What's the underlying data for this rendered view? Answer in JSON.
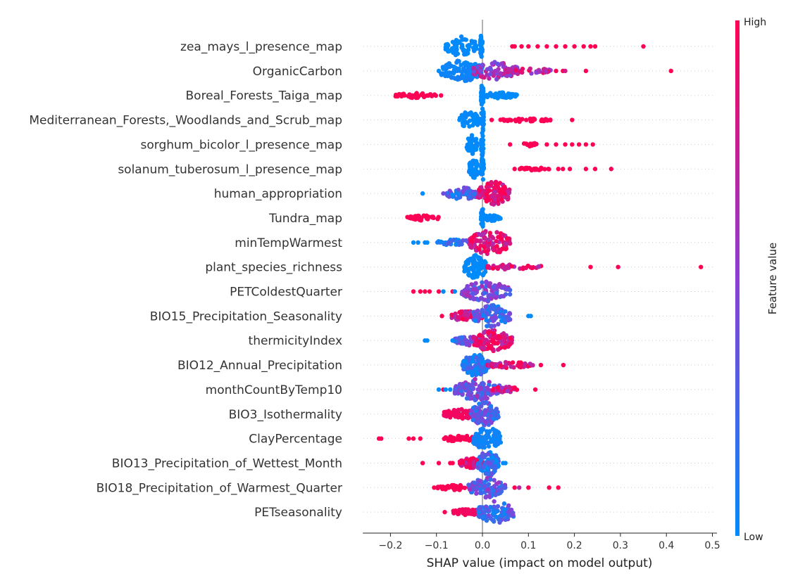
{
  "chart_data": {
    "type": "scatter",
    "subtype": "shap-beeswarm",
    "title": "",
    "xlabel": "SHAP value (impact on model output)",
    "ylabel": "",
    "xlim": [
      -0.26,
      0.51
    ],
    "xticks": [
      -0.2,
      -0.1,
      0.0,
      0.1,
      0.2,
      0.3,
      0.4,
      0.5
    ],
    "xtick_labels": [
      "−0.2",
      "−0.1",
      "0.0",
      "0.1",
      "0.2",
      "0.3",
      "0.4",
      "0.5"
    ],
    "grid": "dotted horizontal per feature",
    "colorbar": {
      "label": "Feature value",
      "high_label": "High",
      "low_label": "Low",
      "low_color": "#008bfb",
      "high_color": "#ff0052"
    },
    "features": [
      {
        "name": "zea_mays_l_presence_map",
        "clusters": [
          {
            "from": -0.08,
            "to": -0.01,
            "color": 0,
            "spread": 1.0,
            "n": 60
          },
          {
            "from": -0.005,
            "to": 0.0,
            "color": 0,
            "spread": 1.2,
            "n": 30
          }
        ],
        "points": [
          {
            "x": 0.065,
            "c": 1
          },
          {
            "x": 0.07,
            "c": 1
          },
          {
            "x": 0.085,
            "c": 1
          },
          {
            "x": 0.1,
            "c": 1
          },
          {
            "x": 0.12,
            "c": 1
          },
          {
            "x": 0.14,
            "c": 1
          },
          {
            "x": 0.16,
            "c": 1
          },
          {
            "x": 0.18,
            "c": 1
          },
          {
            "x": 0.2,
            "c": 1
          },
          {
            "x": 0.22,
            "c": 1
          },
          {
            "x": 0.235,
            "c": 1
          },
          {
            "x": 0.245,
            "c": 1
          },
          {
            "x": 0.35,
            "c": 1
          }
        ]
      },
      {
        "name": "OrganicCarbon",
        "clusters": [
          {
            "from": -0.09,
            "to": 0.0,
            "color": 0.05,
            "spread": 1.1,
            "n": 120
          },
          {
            "from": -0.02,
            "to": 0.08,
            "color": 0.6,
            "spread": 0.9,
            "n": 90
          },
          {
            "from": 0.05,
            "to": 0.15,
            "color": 0.75,
            "spread": 0.3,
            "n": 40
          }
        ],
        "points": [
          {
            "x": -0.095,
            "c": 0
          },
          {
            "x": 0.16,
            "c": 1
          },
          {
            "x": 0.175,
            "c": 1
          },
          {
            "x": 0.18,
            "c": 0.8
          },
          {
            "x": 0.225,
            "c": 1
          },
          {
            "x": 0.41,
            "c": 1
          }
        ]
      },
      {
        "name": "Boreal_Forests_Taiga_map",
        "clusters": [
          {
            "from": -0.19,
            "to": -0.1,
            "color": 1,
            "spread": 0.25,
            "n": 40
          },
          {
            "from": 0.0,
            "to": 0.075,
            "color": 0,
            "spread": 0.3,
            "n": 60
          },
          {
            "from": -0.003,
            "to": 0.002,
            "color": 0,
            "spread": 1.3,
            "n": 30
          }
        ],
        "points": [
          {
            "x": -0.09,
            "c": 1
          }
        ]
      },
      {
        "name": "Mediterranean_Forests,_Woodlands_and_Scrub_map",
        "clusters": [
          {
            "from": -0.05,
            "to": -0.005,
            "color": 0,
            "spread": 0.9,
            "n": 50
          },
          {
            "from": 0.035,
            "to": 0.15,
            "color": 1,
            "spread": 0.2,
            "n": 35
          },
          {
            "from": -0.003,
            "to": 0.003,
            "color": 0,
            "spread": 1.3,
            "n": 25
          }
        ],
        "points": [
          {
            "x": 0.02,
            "c": 1
          },
          {
            "x": 0.195,
            "c": 1
          }
        ]
      },
      {
        "name": "sorghum_bicolor_l_presence_map",
        "clusters": [
          {
            "from": -0.035,
            "to": -0.01,
            "color": 0,
            "spread": 1.0,
            "n": 40
          },
          {
            "from": -0.003,
            "to": 0.002,
            "color": 0,
            "spread": 1.3,
            "n": 25
          },
          {
            "from": 0.085,
            "to": 0.12,
            "color": 1,
            "spread": 0.2,
            "n": 15
          }
        ],
        "points": [
          {
            "x": 0.06,
            "c": 1
          },
          {
            "x": 0.14,
            "c": 1
          },
          {
            "x": 0.16,
            "c": 1
          },
          {
            "x": 0.18,
            "c": 1
          },
          {
            "x": 0.195,
            "c": 1
          },
          {
            "x": 0.21,
            "c": 1
          },
          {
            "x": 0.225,
            "c": 1
          },
          {
            "x": 0.24,
            "c": 1
          }
        ]
      },
      {
        "name": "solanum_tuberosum_l_presence_map",
        "clusters": [
          {
            "from": -0.03,
            "to": -0.008,
            "color": 0,
            "spread": 1.0,
            "n": 40
          },
          {
            "from": -0.003,
            "to": 0.003,
            "color": 0,
            "spread": 1.3,
            "n": 25
          },
          {
            "from": 0.08,
            "to": 0.145,
            "color": 1,
            "spread": 0.2,
            "n": 25
          }
        ],
        "points": [
          {
            "x": 0.07,
            "c": 1
          },
          {
            "x": 0.165,
            "c": 1
          },
          {
            "x": 0.175,
            "c": 1
          },
          {
            "x": 0.19,
            "c": 1
          },
          {
            "x": 0.225,
            "c": 1
          },
          {
            "x": 0.245,
            "c": 1
          },
          {
            "x": 0.28,
            "c": 1
          }
        ]
      },
      {
        "name": "human_appropriation",
        "clusters": [
          {
            "from": -0.08,
            "to": 0.0,
            "color": 0.25,
            "spread": 0.6,
            "n": 70
          },
          {
            "from": -0.01,
            "to": 0.06,
            "color": 0.9,
            "spread": 1.2,
            "n": 110
          }
        ],
        "points": [
          {
            "x": -0.13,
            "c": 0
          },
          {
            "x": -0.085,
            "c": 0.4
          }
        ]
      },
      {
        "name": "Tundra_map",
        "clusters": [
          {
            "from": -0.165,
            "to": -0.095,
            "color": 1,
            "spread": 0.25,
            "n": 35
          },
          {
            "from": 0.0,
            "to": 0.04,
            "color": 0,
            "spread": 0.3,
            "n": 40
          },
          {
            "from": -0.003,
            "to": 0.002,
            "color": 0,
            "spread": 1.3,
            "n": 25
          }
        ],
        "points": []
      },
      {
        "name": "minTempWarmest",
        "clusters": [
          {
            "from": -0.1,
            "to": -0.02,
            "color": 0.1,
            "spread": 0.3,
            "n": 40
          },
          {
            "from": -0.03,
            "to": 0.06,
            "color": 0.85,
            "spread": 1.2,
            "n": 110
          }
        ],
        "points": [
          {
            "x": -0.15,
            "c": 0
          },
          {
            "x": -0.14,
            "c": 0
          },
          {
            "x": -0.125,
            "c": 0
          },
          {
            "x": -0.12,
            "c": 0
          }
        ]
      },
      {
        "name": "plant_species_richness",
        "clusters": [
          {
            "from": -0.04,
            "to": 0.01,
            "color": 0,
            "spread": 1.2,
            "n": 90
          },
          {
            "from": 0.01,
            "to": 0.13,
            "color": 0.85,
            "spread": 0.25,
            "n": 40
          }
        ],
        "points": [
          {
            "x": 0.235,
            "c": 1
          },
          {
            "x": 0.295,
            "c": 1
          },
          {
            "x": 0.475,
            "c": 1
          }
        ]
      },
      {
        "name": "PETColdestQuarter",
        "clusters": [
          {
            "from": -0.045,
            "to": 0.06,
            "color": 0.4,
            "spread": 1.0,
            "n": 110
          }
        ],
        "points": [
          {
            "x": -0.15,
            "c": 1
          },
          {
            "x": -0.135,
            "c": 1
          },
          {
            "x": -0.125,
            "c": 1
          },
          {
            "x": -0.115,
            "c": 1
          },
          {
            "x": -0.095,
            "c": 1
          },
          {
            "x": -0.085,
            "c": 0
          },
          {
            "x": -0.065,
            "c": 1
          },
          {
            "x": -0.06,
            "c": 0
          }
        ]
      },
      {
        "name": "BIO15_Precipitation_Seasonality",
        "clusters": [
          {
            "from": -0.07,
            "to": 0.0,
            "color": 0.85,
            "spread": 0.5,
            "n": 70
          },
          {
            "from": -0.02,
            "to": 0.06,
            "color": 0.25,
            "spread": 1.1,
            "n": 90
          }
        ],
        "points": [
          {
            "x": -0.088,
            "c": 1
          },
          {
            "x": 0.1,
            "c": 0
          },
          {
            "x": 0.105,
            "c": 0
          }
        ]
      },
      {
        "name": "thermicityIndex",
        "clusters": [
          {
            "from": -0.06,
            "to": 0.0,
            "color": 0.35,
            "spread": 0.5,
            "n": 60
          },
          {
            "from": -0.02,
            "to": 0.065,
            "color": 0.85,
            "spread": 1.1,
            "n": 110
          }
        ],
        "points": [
          {
            "x": -0.125,
            "c": 0
          },
          {
            "x": -0.12,
            "c": 0
          },
          {
            "x": -0.065,
            "c": 0
          }
        ]
      },
      {
        "name": "BIO12_Annual_Precipitation",
        "clusters": [
          {
            "from": -0.045,
            "to": 0.015,
            "color": 0.1,
            "spread": 1.1,
            "n": 100
          },
          {
            "from": 0.01,
            "to": 0.11,
            "color": 0.9,
            "spread": 0.3,
            "n": 60
          }
        ],
        "points": [
          {
            "x": 0.127,
            "c": 1
          },
          {
            "x": 0.176,
            "c": 1
          }
        ]
      },
      {
        "name": "monthCountByTemp10",
        "clusters": [
          {
            "from": -0.06,
            "to": 0.04,
            "color": 0.4,
            "spread": 1.1,
            "n": 110
          },
          {
            "from": 0.02,
            "to": 0.08,
            "color": 0.8,
            "spread": 0.3,
            "n": 30
          }
        ],
        "points": [
          {
            "x": -0.095,
            "c": 0
          },
          {
            "x": -0.085,
            "c": 1
          },
          {
            "x": -0.08,
            "c": 0
          },
          {
            "x": -0.07,
            "c": 0
          },
          {
            "x": 0.115,
            "c": 1
          }
        ]
      },
      {
        "name": "BIO3_Isothermality",
        "clusters": [
          {
            "from": -0.085,
            "to": -0.01,
            "color": 0.95,
            "spread": 0.5,
            "n": 70
          },
          {
            "from": -0.025,
            "to": 0.035,
            "color": 0.3,
            "spread": 1.2,
            "n": 100
          }
        ],
        "points": []
      },
      {
        "name": "ClayPercentage",
        "clusters": [
          {
            "from": -0.085,
            "to": -0.01,
            "color": 1,
            "spread": 0.3,
            "n": 50
          },
          {
            "from": -0.02,
            "to": 0.04,
            "color": 0.05,
            "spread": 1.2,
            "n": 90
          }
        ],
        "points": [
          {
            "x": -0.225,
            "c": 1
          },
          {
            "x": -0.22,
            "c": 1
          },
          {
            "x": -0.16,
            "c": 1
          },
          {
            "x": -0.15,
            "c": 1
          },
          {
            "x": -0.135,
            "c": 1
          }
        ]
      },
      {
        "name": "BIO13_Precipitation_of_Wettest_Month",
        "clusters": [
          {
            "from": -0.05,
            "to": 0.0,
            "color": 0.9,
            "spread": 0.5,
            "n": 60
          },
          {
            "from": -0.01,
            "to": 0.035,
            "color": 0.15,
            "spread": 1.3,
            "n": 100
          }
        ],
        "points": [
          {
            "x": -0.13,
            "c": 1
          },
          {
            "x": -0.095,
            "c": 1
          },
          {
            "x": -0.07,
            "c": 1
          },
          {
            "x": -0.065,
            "c": 1
          },
          {
            "x": 0.045,
            "c": 0
          },
          {
            "x": 0.05,
            "c": 0
          }
        ]
      },
      {
        "name": "BIO18_Precipitation_of_Warmest_Quarter",
        "clusters": [
          {
            "from": -0.1,
            "to": -0.01,
            "color": 1,
            "spread": 0.25,
            "n": 40
          },
          {
            "from": -0.03,
            "to": 0.05,
            "color": 0.35,
            "spread": 1.0,
            "n": 90
          }
        ],
        "points": [
          {
            "x": -0.105,
            "c": 1
          },
          {
            "x": 0.07,
            "c": 1
          },
          {
            "x": 0.08,
            "c": 0.7
          },
          {
            "x": 0.1,
            "c": 1
          },
          {
            "x": 0.145,
            "c": 1
          },
          {
            "x": 0.165,
            "c": 1
          }
        ]
      },
      {
        "name": "PETseasonality",
        "clusters": [
          {
            "from": -0.065,
            "to": -0.005,
            "color": 0.95,
            "spread": 0.35,
            "n": 60
          },
          {
            "from": -0.01,
            "to": 0.07,
            "color": 0.25,
            "spread": 1.1,
            "n": 100
          }
        ],
        "points": [
          {
            "x": -0.082,
            "c": 1
          }
        ]
      }
    ]
  }
}
